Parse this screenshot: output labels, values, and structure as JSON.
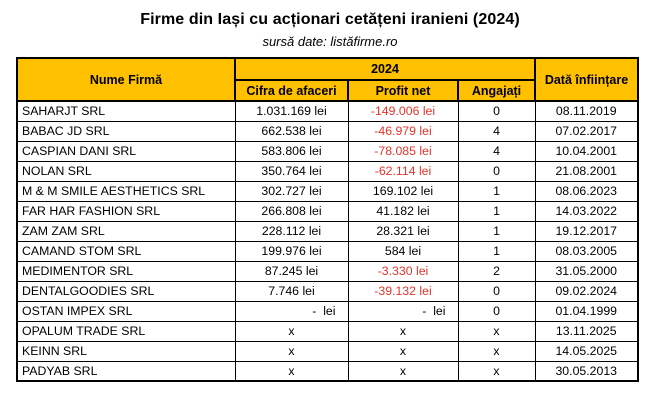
{
  "title": "Firme din Iași cu acționari cetățeni iranieni (2024)",
  "subtitle": "sursă date: listăfirme.ro",
  "colors": {
    "header_bg": "#FFC000",
    "negative_text": "#E5352B",
    "border": "#000000",
    "background": "#FFFFFF"
  },
  "table": {
    "year_header": "2024",
    "headers": {
      "name": "Nume Firmă",
      "revenue": "Cifra de afaceri",
      "profit": "Profit net",
      "employees": "Angajați",
      "founded": "Dată înființare"
    }
  },
  "chart_data": {
    "type": "table",
    "title": "Firme din Iași cu acționari cetățeni iranieni (2024)",
    "subtitle": "sursă date: listăfirme.ro",
    "columns": [
      "Nume Firmă",
      "Cifra de afaceri (2024)",
      "Profit net (2024)",
      "Angajați (2024)",
      "Dată înființare"
    ],
    "rows": [
      {
        "name": "SAHARJT SRL",
        "revenue": "1.031.169 lei",
        "profit": "-149.006 lei",
        "employees": "0",
        "founded": "08.11.2019"
      },
      {
        "name": "BABAC JD SRL",
        "revenue": "662.538 lei",
        "profit": "-46.979 lei",
        "employees": "4",
        "founded": "07.02.2017"
      },
      {
        "name": "CASPIAN DANI SRL",
        "revenue": "583.806 lei",
        "profit": "-78.085 lei",
        "employees": "4",
        "founded": "10.04.2001"
      },
      {
        "name": "NOLAN SRL",
        "revenue": "350.764 lei",
        "profit": "-62.114 lei",
        "employees": "0",
        "founded": "21.08.2001"
      },
      {
        "name": "M & M SMILE AESTHETICS SRL",
        "revenue": "302.727 lei",
        "profit": "169.102 lei",
        "employees": "1",
        "founded": "08.06.2023"
      },
      {
        "name": "FAR HAR FASHION SRL",
        "revenue": "266.808 lei",
        "profit": "41.182 lei",
        "employees": "1",
        "founded": "14.03.2022"
      },
      {
        "name": "ZAM ZAM SRL",
        "revenue": "228.112 lei",
        "profit": "28.321 lei",
        "employees": "1",
        "founded": "19.12.2017"
      },
      {
        "name": "CAMAND STOM SRL",
        "revenue": "199.976 lei",
        "profit": "584 lei",
        "employees": "1",
        "founded": "08.03.2005"
      },
      {
        "name": "MEDIMENTOR SRL",
        "revenue": "87.245 lei",
        "profit": "-3.330 lei",
        "employees": "2",
        "founded": "31.05.2000"
      },
      {
        "name": "DENTALGOODIES SRL",
        "revenue": "7.746 lei",
        "profit": "-39.132 lei",
        "employees": "0",
        "founded": "09.02.2024"
      },
      {
        "name": "OSTAN IMPEX SRL",
        "revenue": "-  lei",
        "profit": "-  lei",
        "employees": "0",
        "founded": "01.04.1999"
      },
      {
        "name": "OPALUM TRADE SRL",
        "revenue": "x",
        "profit": "x",
        "employees": "x",
        "founded": "13.11.2025"
      },
      {
        "name": "KEINN SRL",
        "revenue": "x",
        "profit": "x",
        "employees": "x",
        "founded": "14.05.2025"
      },
      {
        "name": "PADYAB SRL",
        "revenue": "x",
        "profit": "x",
        "employees": "x",
        "founded": "30.05.2013"
      }
    ]
  }
}
